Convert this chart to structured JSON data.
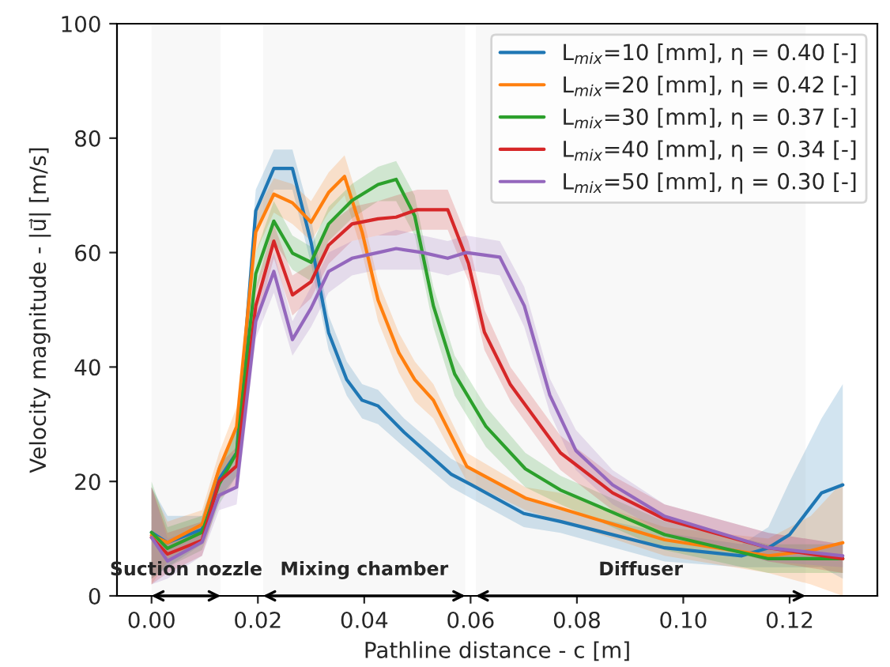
{
  "chart_data": {
    "type": "line",
    "xlabel": "Pathline distance - c [m]",
    "ylabel": "Velocity magnitude - |u⃗| [m/s]",
    "xlim": [
      -0.0065,
      0.1365
    ],
    "ylim": [
      0,
      100
    ],
    "xticks": [
      {
        "value": 0,
        "label": "0.00"
      },
      {
        "value": 0.02,
        "label": "0.02"
      },
      {
        "value": 0.04,
        "label": "0.04"
      },
      {
        "value": 0.06,
        "label": "0.06"
      },
      {
        "value": 0.08,
        "label": "0.08"
      },
      {
        "value": 0.1,
        "label": "0.10"
      },
      {
        "value": 0.12,
        "label": "0.12"
      }
    ],
    "yticks": [
      0,
      20,
      40,
      60,
      80,
      100
    ],
    "grid": false,
    "legend": "top right",
    "marker": "none",
    "line_style": "solid",
    "bands": [
      {
        "axis": "x",
        "from": 0,
        "to": 0.013,
        "label": "Suction nozzle"
      },
      {
        "axis": "x",
        "from": 0.021,
        "to": 0.059,
        "label": "Mixing chamber"
      },
      {
        "axis": "x",
        "from": 0.061,
        "to": 0.123,
        "label": "Diffuser"
      }
    ],
    "series": [
      {
        "name": "L$_{mix}$=10 [mm], η = 0.40 [-]",
        "color": "#1f77b4",
        "x": [
          0,
          0.003,
          0.0095,
          0.0127,
          0.016,
          0.0196,
          0.023,
          0.0265,
          0.03,
          0.0333,
          0.0367,
          0.0396,
          0.0426,
          0.0475,
          0.0563,
          0.0602,
          0.07,
          0.0769,
          0.0965,
          0.111,
          0.116,
          0.12,
          0.126,
          0.13
        ],
        "values": [
          11.1,
          9.3,
          11.6,
          20.4,
          25,
          67.3,
          74.7,
          74.7,
          61.8,
          46,
          37.8,
          34.2,
          33.2,
          28.6,
          21.3,
          19.4,
          14.4,
          13,
          8.4,
          7,
          8.4,
          10.7,
          18,
          19.4
        ],
        "lower": [
          3,
          5,
          9,
          17,
          21,
          63,
          71,
          71,
          58,
          43,
          35,
          31,
          30,
          26,
          19,
          17,
          12,
          11,
          6,
          5,
          5,
          5,
          5,
          3
        ],
        "upper": [
          19,
          14,
          14,
          23,
          29,
          71,
          78,
          78,
          66,
          49,
          41,
          37,
          36,
          31,
          24,
          22,
          17,
          15,
          11,
          9,
          12,
          20,
          31,
          37
        ]
      },
      {
        "name": "L$_{mix}$=20 [mm], η = 0.42 [-]",
        "color": "#ff7f0e",
        "x": [
          0,
          0.003,
          0.0095,
          0.0127,
          0.016,
          0.0196,
          0.023,
          0.0265,
          0.03,
          0.0333,
          0.0363,
          0.0396,
          0.0426,
          0.0465,
          0.0495,
          0.053,
          0.0593,
          0.0703,
          0.0769,
          0.0965,
          0.116,
          0.124,
          0.13
        ],
        "values": [
          10.6,
          9.3,
          12.5,
          22.2,
          29.6,
          63.6,
          70.2,
          68.7,
          65.3,
          70.5,
          73.3,
          63.6,
          51.7,
          42.5,
          37.8,
          34.2,
          22.6,
          17.1,
          15.3,
          9.8,
          7,
          7.9,
          9.3
        ],
        "lower": [
          2,
          6,
          10,
          19,
          26,
          60,
          67,
          65,
          62,
          67,
          70,
          60,
          48,
          39,
          34,
          31,
          20,
          15,
          13,
          7,
          4,
          2,
          0
        ],
        "upper": [
          19,
          13,
          15,
          25,
          33,
          67,
          73,
          72,
          69,
          74,
          77,
          67,
          55,
          46,
          41,
          37,
          25,
          19,
          18,
          12,
          10,
          14,
          20
        ]
      },
      {
        "name": "L$_{mix}$=30 [mm], η = 0.37 [-]",
        "color": "#2ca02c",
        "x": [
          0,
          0.003,
          0.0095,
          0.0127,
          0.016,
          0.0196,
          0.023,
          0.0265,
          0.03,
          0.0333,
          0.0377,
          0.0426,
          0.046,
          0.0495,
          0.053,
          0.057,
          0.0629,
          0.0703,
          0.0769,
          0.0965,
          0.116,
          0.13
        ],
        "values": [
          11.1,
          8.3,
          11.1,
          19.5,
          25,
          56.3,
          65.5,
          59.9,
          58.3,
          65,
          69.1,
          71.9,
          72.8,
          66.4,
          50.7,
          38.8,
          29.6,
          22.2,
          18.5,
          10.7,
          6.5,
          6.5
        ],
        "lower": [
          3,
          5,
          8,
          16,
          21,
          53,
          62,
          57,
          55,
          62,
          66,
          69,
          69,
          63,
          47,
          35,
          26,
          19,
          16,
          8,
          4,
          4
        ],
        "upper": [
          20,
          12,
          14,
          23,
          29,
          60,
          69,
          63,
          61,
          68,
          72,
          75,
          76,
          70,
          54,
          42,
          33,
          25,
          21,
          13,
          9,
          9
        ]
      },
      {
        "name": "L$_{mix}$=40 [mm], η = 0.34 [-]",
        "color": "#d62728",
        "x": [
          0,
          0.003,
          0.0095,
          0.0127,
          0.016,
          0.0196,
          0.023,
          0.0265,
          0.03,
          0.0333,
          0.0377,
          0.0426,
          0.046,
          0.05,
          0.0557,
          0.0596,
          0.0626,
          0.0675,
          0.0769,
          0.0867,
          0.0965,
          0.116,
          0.13
        ],
        "values": [
          10.2,
          7.3,
          9.7,
          20,
          22.7,
          50.7,
          62,
          52.6,
          54.9,
          61.3,
          65,
          65.9,
          66.2,
          67.5,
          67.5,
          58.1,
          46.1,
          36.9,
          25,
          18,
          13.4,
          8.4,
          6.5
        ],
        "lower": [
          2,
          4,
          7,
          17,
          19,
          47,
          59,
          49,
          52,
          58,
          62,
          63,
          63,
          64,
          64,
          55,
          43,
          34,
          22,
          15,
          11,
          6,
          4
        ],
        "upper": [
          19,
          11,
          13,
          23,
          26,
          54,
          65,
          56,
          58,
          65,
          68,
          69,
          70,
          71,
          71,
          62,
          50,
          40,
          28,
          21,
          16,
          11,
          9
        ]
      },
      {
        "name": "L$_{mix}$=50 [mm], η = 0.30 [-]",
        "color": "#9467bd",
        "x": [
          0,
          0.003,
          0.0095,
          0.0127,
          0.016,
          0.0196,
          0.023,
          0.0265,
          0.03,
          0.0333,
          0.0377,
          0.0426,
          0.046,
          0.051,
          0.0557,
          0.0592,
          0.0655,
          0.0701,
          0.0749,
          0.0798,
          0.0867,
          0.0965,
          0.116,
          0.13
        ],
        "values": [
          10.2,
          6.1,
          9.4,
          17.6,
          19,
          48,
          56.7,
          44.8,
          50.3,
          56.7,
          59,
          60,
          60.7,
          60,
          59,
          60,
          59.2,
          50.7,
          35.1,
          25.4,
          19.4,
          13.9,
          8.4,
          7
        ],
        "lower": [
          2,
          3,
          7,
          15,
          16,
          45,
          53,
          42,
          47,
          53,
          56,
          57,
          57,
          57,
          56,
          57,
          56,
          47,
          32,
          22,
          16,
          11,
          6,
          5
        ],
        "upper": [
          19,
          10,
          12,
          21,
          23,
          51,
          60,
          48,
          54,
          60,
          62,
          63,
          64,
          63,
          62,
          63,
          62,
          54,
          38,
          29,
          22,
          16,
          11,
          9
        ]
      }
    ]
  }
}
